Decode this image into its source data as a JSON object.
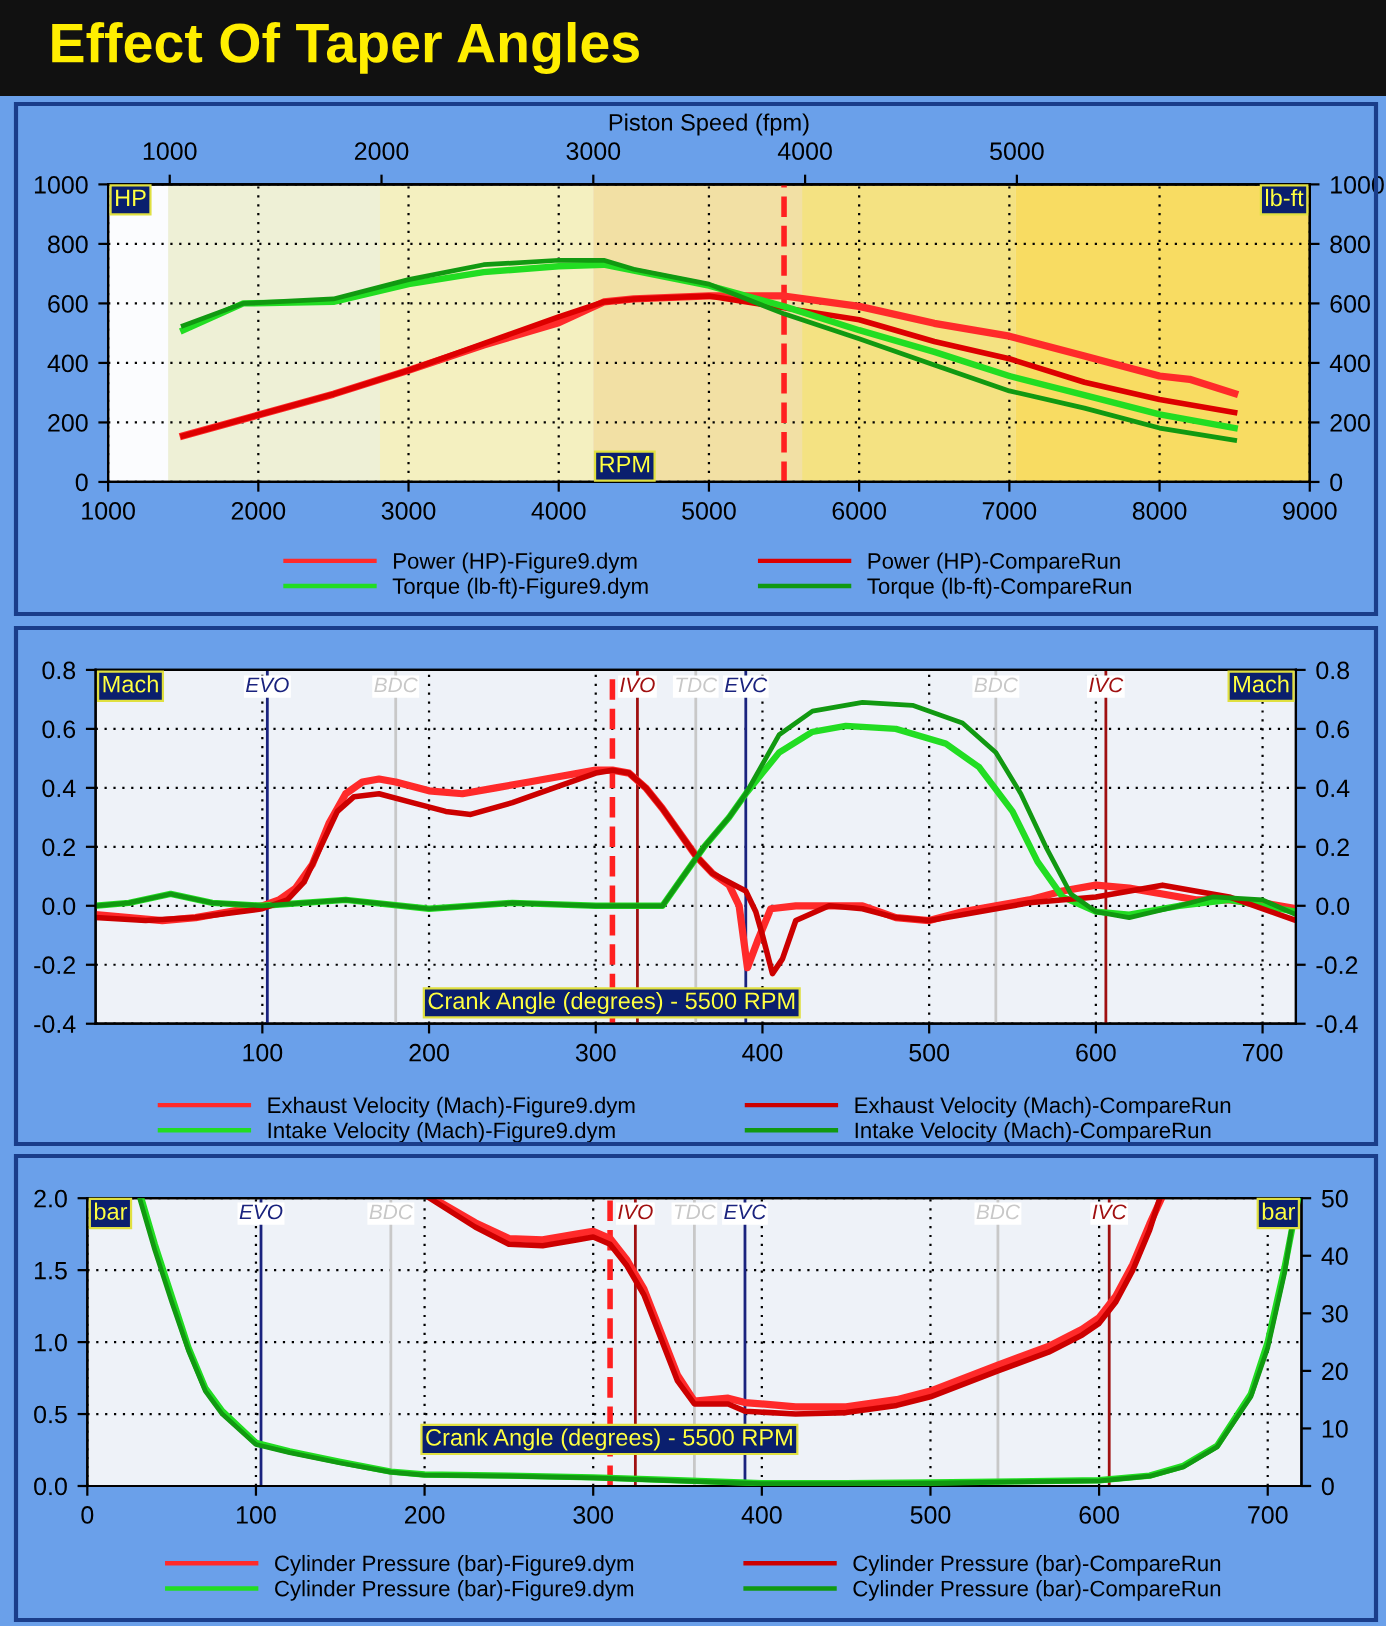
{
  "chart_data": [
    {
      "type": "line",
      "title": "Effect Of Taper Angles",
      "xlabel": "RPM",
      "ylabel": "HP",
      "y2label": "lb-ft",
      "x2label": "Piston Speed (fpm)",
      "xlim": [
        1000,
        9000
      ],
      "xticks": [
        1000,
        2000,
        3000,
        4000,
        5000,
        6000,
        7000,
        8000,
        9000
      ],
      "ylim": [
        0,
        1000
      ],
      "yticks": [
        0,
        200,
        400,
        600,
        800,
        1000
      ],
      "y2lim": [
        0,
        1000
      ],
      "y2ticks": [
        0,
        200,
        400,
        600,
        800,
        1000
      ],
      "x2lim": [
        709,
        6383
      ],
      "x2ticks": [
        1000,
        2000,
        3000,
        4000,
        5000
      ],
      "grid": true,
      "legend": "bottom",
      "marker": "none",
      "line_style": "solid",
      "ref_lines": [
        {
          "axis": "x",
          "value": 5500,
          "color": "#ff2020",
          "line_style": "dashed"
        }
      ],
      "bands": [
        {
          "axis": "x",
          "from": 1000,
          "to": 1400,
          "color": "#fbfcfe"
        },
        {
          "axis": "x",
          "from": 1400,
          "to": 2810,
          "color": "#eef0d6"
        },
        {
          "axis": "x",
          "from": 2810,
          "to": 4230,
          "color": "#f4f0c0"
        },
        {
          "axis": "x",
          "from": 4230,
          "to": 5620,
          "color": "#f2e0a4"
        },
        {
          "axis": "x",
          "from": 5620,
          "to": 7040,
          "color": "#f4e282"
        },
        {
          "axis": "x",
          "from": 7040,
          "to": 9000,
          "color": "#f8dc62"
        }
      ],
      "series": [
        {
          "name": "Power (HP)-Figure9.dym",
          "color": "#ff2a2a",
          "x": [
            1500,
            2000,
            2500,
            3000,
            3500,
            4000,
            4300,
            4500,
            5000,
            5500,
            6000,
            6500,
            7000,
            7500,
            8000,
            8200,
            8500
          ],
          "values": [
            155,
            225,
            295,
            375,
            460,
            535,
            605,
            615,
            625,
            625,
            590,
            533,
            490,
            423,
            356,
            345,
            297
          ]
        },
        {
          "name": "Torque (lb-ft)-Figure9.dym",
          "color": "#22dd22",
          "axis": "y2",
          "x": [
            1500,
            1900,
            2500,
            3000,
            3500,
            4000,
            4300,
            4500,
            5000,
            5500,
            6000,
            6500,
            7000,
            7500,
            8000,
            8500
          ],
          "values": [
            510,
            600,
            605,
            665,
            705,
            725,
            730,
            710,
            660,
            590,
            510,
            437,
            356,
            292,
            227,
            181
          ]
        },
        {
          "name": "Power (HP)-CompareRun",
          "color": "#dd0000",
          "x": [
            1500,
            2000,
            2500,
            3000,
            3500,
            4000,
            4300,
            4500,
            5000,
            5500,
            6000,
            6500,
            7000,
            7500,
            8000,
            8500
          ],
          "values": [
            155,
            225,
            295,
            375,
            465,
            555,
            605,
            615,
            625,
            585,
            545,
            472,
            414,
            335,
            277,
            233
          ]
        },
        {
          "name": "Torque (lb-ft)-CompareRun",
          "color": "#119911",
          "axis": "y2",
          "x": [
            1500,
            1900,
            2500,
            3000,
            3500,
            4000,
            4300,
            4500,
            5000,
            5500,
            6000,
            6500,
            7000,
            7500,
            8000,
            8500
          ],
          "values": [
            525,
            600,
            615,
            680,
            730,
            745,
            745,
            715,
            665,
            565,
            481,
            393,
            306,
            248,
            181,
            140
          ]
        }
      ]
    },
    {
      "type": "line",
      "xlabel": "Crank Angle (degrees) - 5500 RPM",
      "ylabel": "Mach",
      "y2label": "Mach",
      "xlim": [
        0,
        720
      ],
      "xticks": [
        100,
        200,
        300,
        400,
        500,
        600,
        700
      ],
      "ylim": [
        -0.4,
        0.8
      ],
      "yticks": [
        -0.4,
        -0.2,
        {
          "value": 0,
          "label": "0.0"
        },
        0.2,
        0.4,
        0.6,
        0.8
      ],
      "y2lim": [
        -0.4,
        0.8
      ],
      "y2ticks": [
        -0.4,
        -0.2,
        {
          "value": 0,
          "label": "0.0"
        },
        0.2,
        0.4,
        0.6,
        0.8
      ],
      "grid": true,
      "legend": "bottom",
      "marker": "none",
      "line_style": "solid",
      "ref_lines": [
        {
          "axis": "x",
          "value": 103,
          "label": "EVO",
          "color": "#1a237e"
        },
        {
          "axis": "x",
          "value": 180,
          "label": "BDC",
          "color": "#c8c8c8"
        },
        {
          "axis": "x",
          "value": 310,
          "color": "#ff2020",
          "line_style": "dashed"
        },
        {
          "axis": "x",
          "value": 325,
          "label": "IVO",
          "color": "#a01010"
        },
        {
          "axis": "x",
          "value": 360,
          "label": "TDC",
          "color": "#c8c8c8"
        },
        {
          "axis": "x",
          "value": 390,
          "label": "EVC",
          "color": "#1a237e"
        },
        {
          "axis": "x",
          "value": 540,
          "label": "BDC",
          "color": "#c8c8c8"
        },
        {
          "axis": "x",
          "value": 606,
          "label": "IVC",
          "color": "#a01010"
        }
      ],
      "series": [
        {
          "name": "Exhaust Velocity (Mach)-Figure9.dym",
          "color": "#ff2a2a",
          "x": [
            0,
            20,
            40,
            60,
            80,
            100,
            110,
            120,
            130,
            140,
            150,
            160,
            170,
            180,
            200,
            220,
            240,
            260,
            280,
            300,
            310,
            320,
            330,
            340,
            350,
            360,
            370,
            380,
            386,
            391,
            397,
            405,
            420,
            440,
            460,
            480,
            500,
            520,
            540,
            560,
            580,
            600,
            620,
            640,
            660,
            680,
            700,
            720
          ],
          "values": [
            -0.03,
            -0.04,
            -0.05,
            -0.04,
            -0.02,
            0.0,
            0.02,
            0.06,
            0.14,
            0.28,
            0.38,
            0.42,
            0.43,
            0.42,
            0.39,
            0.38,
            0.4,
            0.42,
            0.44,
            0.46,
            0.46,
            0.45,
            0.4,
            0.33,
            0.25,
            0.17,
            0.11,
            0.07,
            0.0,
            -0.21,
            -0.12,
            -0.01,
            0.0,
            0.0,
            0.0,
            -0.04,
            -0.05,
            -0.02,
            0.0,
            0.02,
            0.05,
            0.07,
            0.06,
            0.04,
            0.02,
            0.02,
            0.01,
            -0.01
          ]
        },
        {
          "name": "Intake Velocity (Mach)-Figure9.dym",
          "color": "#22dd22",
          "x": [
            0,
            20,
            45,
            70,
            100,
            150,
            200,
            250,
            300,
            340,
            350,
            365,
            380,
            390,
            400,
            410,
            430,
            450,
            480,
            510,
            530,
            550,
            565,
            580,
            600,
            620,
            650,
            680,
            720
          ],
          "values": [
            0.0,
            0.01,
            0.04,
            0.01,
            0.0,
            0.02,
            -0.01,
            0.01,
            0.0,
            0.0,
            0.08,
            0.2,
            0.3,
            0.38,
            0.45,
            0.52,
            0.59,
            0.61,
            0.6,
            0.55,
            0.47,
            0.32,
            0.15,
            0.03,
            -0.02,
            -0.03,
            0.0,
            0.02,
            -0.02
          ]
        },
        {
          "name": "Exhaust Velocity (Mach)-CompareRun",
          "color": "#cc0000",
          "x": [
            0,
            30,
            60,
            100,
            115,
            125,
            135,
            145,
            155,
            170,
            190,
            210,
            225,
            250,
            280,
            300,
            310,
            320,
            330,
            340,
            350,
            360,
            370,
            380,
            390,
            396,
            400,
            406,
            412,
            420,
            440,
            460,
            480,
            500,
            530,
            560,
            600,
            640,
            680,
            720
          ],
          "values": [
            -0.04,
            -0.05,
            -0.04,
            -0.01,
            0.02,
            0.08,
            0.2,
            0.32,
            0.37,
            0.38,
            0.35,
            0.32,
            0.31,
            0.35,
            0.41,
            0.45,
            0.46,
            0.45,
            0.4,
            0.33,
            0.25,
            0.17,
            0.11,
            0.08,
            0.05,
            -0.02,
            -0.1,
            -0.23,
            -0.18,
            -0.05,
            0.0,
            -0.01,
            -0.04,
            -0.05,
            -0.02,
            0.01,
            0.03,
            0.07,
            0.03,
            -0.05
          ]
        },
        {
          "name": "Intake Velocity (Mach)-CompareRun",
          "color": "#119911",
          "x": [
            0,
            20,
            45,
            70,
            100,
            150,
            200,
            250,
            300,
            340,
            350,
            365,
            380,
            390,
            400,
            410,
            430,
            460,
            490,
            520,
            540,
            555,
            570,
            585,
            600,
            620,
            650,
            670,
            700,
            720
          ],
          "values": [
            0.0,
            0.01,
            0.04,
            0.01,
            0.0,
            0.02,
            -0.01,
            0.01,
            0.0,
            0.0,
            0.08,
            0.2,
            0.3,
            0.38,
            0.48,
            0.58,
            0.66,
            0.69,
            0.68,
            0.62,
            0.52,
            0.38,
            0.2,
            0.04,
            -0.02,
            -0.04,
            0.0,
            0.03,
            0.02,
            -0.03
          ]
        }
      ]
    },
    {
      "type": "line",
      "xlabel": "Crank Angle (degrees) - 5500 RPM",
      "ylabel": "bar",
      "y2label": "bar",
      "xlim": [
        0,
        720
      ],
      "xticks": [
        0,
        100,
        200,
        300,
        400,
        500,
        600,
        700
      ],
      "ylim": [
        0,
        2
      ],
      "yticks": [
        {
          "value": 0,
          "label": "0.0"
        },
        0.5,
        {
          "value": 1,
          "label": "1.0"
        },
        1.5,
        {
          "value": 2,
          "label": "2.0"
        }
      ],
      "y2lim": [
        0,
        50
      ],
      "y2ticks": [
        0,
        10,
        20,
        30,
        40,
        50
      ],
      "grid": true,
      "legend": "bottom",
      "marker": "none",
      "line_style": "solid",
      "ref_lines": [
        {
          "axis": "x",
          "value": 103,
          "label": "EVO",
          "color": "#1a237e"
        },
        {
          "axis": "x",
          "value": 180,
          "label": "BDC",
          "color": "#c8c8c8"
        },
        {
          "axis": "x",
          "value": 310,
          "color": "#ff2020",
          "line_style": "dashed"
        },
        {
          "axis": "x",
          "value": 325,
          "label": "IVO",
          "color": "#a01010"
        },
        {
          "axis": "x",
          "value": 360,
          "label": "TDC",
          "color": "#c8c8c8"
        },
        {
          "axis": "x",
          "value": 390,
          "label": "EVC",
          "color": "#1a237e"
        },
        {
          "axis": "x",
          "value": 540,
          "label": "BDC",
          "color": "#c8c8c8"
        },
        {
          "axis": "x",
          "value": 606,
          "label": "IVC",
          "color": "#a01010"
        }
      ],
      "series": [
        {
          "name": "Cylinder Pressure (bar)-Figure9.dym",
          "color": "#ff2a2a",
          "x": [
            205,
            230,
            250,
            270,
            290,
            300,
            310,
            320,
            330,
            340,
            350,
            360,
            370,
            380,
            390,
            420,
            450,
            480,
            500,
            540,
            570,
            590,
            600,
            610,
            620,
            630,
            637
          ],
          "values": [
            2.0,
            1.83,
            1.72,
            1.71,
            1.75,
            1.77,
            1.72,
            1.57,
            1.37,
            1.07,
            0.77,
            0.59,
            0.6,
            0.61,
            0.58,
            0.55,
            0.55,
            0.6,
            0.66,
            0.84,
            0.97,
            1.09,
            1.17,
            1.32,
            1.54,
            1.82,
            2.0
          ]
        },
        {
          "name": "Cylinder Pressure (bar)-Figure9.dym",
          "color": "#22dd22",
          "axis": "y2",
          "x": [
            32,
            40,
            50,
            60,
            70,
            80,
            100,
            120,
            150,
            180,
            200,
            250,
            300,
            350,
            400,
            450,
            500,
            550,
            600,
            630,
            650,
            670,
            690,
            700,
            710,
            718
          ],
          "values": [
            50,
            42,
            33,
            24,
            17,
            13,
            7.5,
            6,
            4.2,
            2.5,
            2.0,
            1.8,
            1.5,
            1.0,
            0.5,
            0.5,
            0.6,
            0.8,
            1.0,
            1.8,
            3.5,
            7,
            16,
            25,
            38,
            50
          ]
        },
        {
          "name": "Cylinder Pressure (bar)-CompareRun",
          "color": "#cc0000",
          "x": [
            203,
            230,
            250,
            270,
            290,
            300,
            310,
            320,
            330,
            340,
            350,
            360,
            370,
            380,
            390,
            420,
            450,
            480,
            500,
            540,
            570,
            590,
            600,
            610,
            620,
            630,
            636
          ],
          "values": [
            2.0,
            1.8,
            1.68,
            1.67,
            1.71,
            1.73,
            1.68,
            1.53,
            1.33,
            1.03,
            0.73,
            0.57,
            0.57,
            0.57,
            0.52,
            0.5,
            0.51,
            0.56,
            0.62,
            0.8,
            0.93,
            1.05,
            1.13,
            1.28,
            1.5,
            1.78,
            2.0
          ]
        },
        {
          "name": "Cylinder Pressure (bar)-CompareRun",
          "color": "#119911",
          "axis": "y2",
          "x": [
            31,
            40,
            50,
            60,
            70,
            80,
            100,
            120,
            150,
            180,
            200,
            250,
            300,
            350,
            400,
            450,
            500,
            550,
            600,
            630,
            650,
            670,
            690,
            700,
            710,
            717
          ],
          "values": [
            50,
            41,
            32,
            23.5,
            16.5,
            12.5,
            7.2,
            5.8,
            4.0,
            2.4,
            1.9,
            1.7,
            1.4,
            0.9,
            0.4,
            0.4,
            0.5,
            0.7,
            0.9,
            1.7,
            3.3,
            6.8,
            15.5,
            24,
            37,
            50
          ]
        }
      ]
    }
  ]
}
